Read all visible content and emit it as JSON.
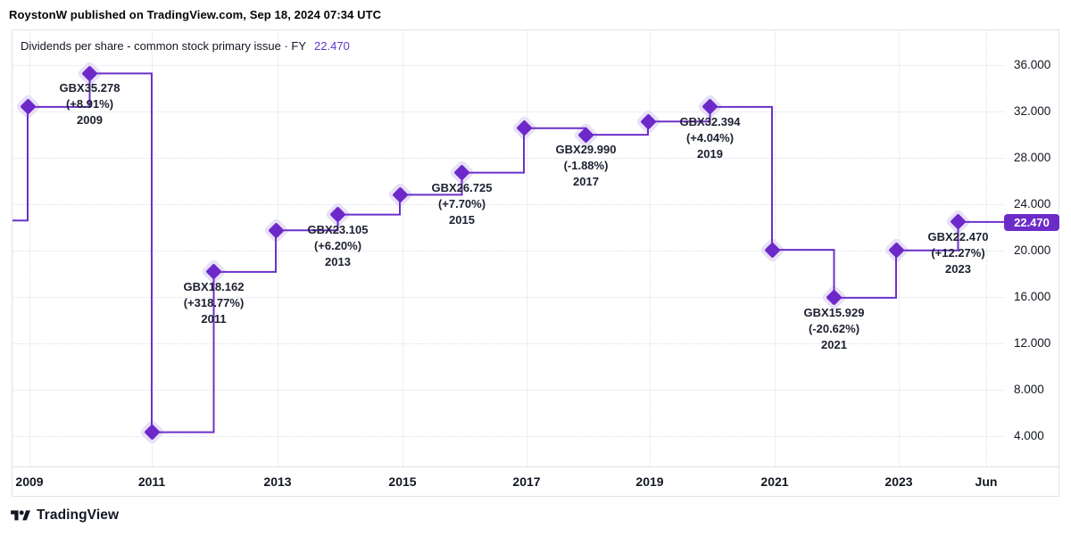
{
  "header": {
    "attribution": "RoystonW published on TradingView.com, Sep 18, 2024 07:34 UTC"
  },
  "chart": {
    "title": "Dividends per share - common stock primary issue · FY",
    "value": "22.470"
  },
  "footer": {
    "brand": "TradingView",
    "logo_icon": "tradingview-logo"
  },
  "colors": {
    "line_purple": "#6d30c9",
    "marker_purple": "#6d28c9",
    "marker_glow": "#e7e0f7",
    "title_value_purple": "#5f35c9",
    "badge_bg": "#6c2bc9",
    "badge_text": "#ffffff",
    "text_dark": "#131722",
    "grid_line": "#dcdfe9",
    "border": "#e0e3eb"
  },
  "chart_data": {
    "type": "line",
    "subtype": "step",
    "title": "Dividends per share - common stock primary issue · FY",
    "unit": "GBX (pence)",
    "grid": true,
    "legend_position": "none",
    "ylim": [
      1.5,
      38.5
    ],
    "x_axis_ticks": [
      "2009",
      "2011",
      "2013",
      "2015",
      "2017",
      "2019",
      "2021",
      "2023",
      "Jun"
    ],
    "y_axis_ticks": [
      "36.000",
      "32.000",
      "28.000",
      "24.000",
      "20.000",
      "16.000",
      "12.000",
      "8.000",
      "4.000"
    ],
    "y_axis_values": [
      36,
      32,
      28,
      24,
      20,
      16,
      12,
      8,
      4
    ],
    "price_badge": "22.470",
    "pre_series_value": 22.6,
    "series": [
      {
        "year": 2008,
        "value": 32.392
      },
      {
        "year": 2009,
        "value": 35.278,
        "label": [
          "GBX35.278",
          "(+8.91%)",
          "2009"
        ]
      },
      {
        "year": 2010,
        "value": 4.337
      },
      {
        "year": 2011,
        "value": 18.162,
        "label": [
          "GBX18.162",
          "(+318.77%)",
          "2011"
        ]
      },
      {
        "year": 2012,
        "value": 21.756
      },
      {
        "year": 2013,
        "value": 23.105,
        "label": [
          "GBX23.105",
          "(+6.20%)",
          "2013"
        ]
      },
      {
        "year": 2014,
        "value": 24.814
      },
      {
        "year": 2015,
        "value": 26.725,
        "label": [
          "GBX26.725",
          "(+7.70%)",
          "2015"
        ]
      },
      {
        "year": 2016,
        "value": 30.565
      },
      {
        "year": 2017,
        "value": 29.99,
        "label": [
          "GBX29.990",
          "(-1.88%)",
          "2017"
        ]
      },
      {
        "year": 2018,
        "value": 31.136
      },
      {
        "year": 2019,
        "value": 32.394,
        "label": [
          "GBX32.394",
          "(+4.04%)",
          "2019"
        ]
      },
      {
        "year": 2020,
        "value": 20.066
      },
      {
        "year": 2021,
        "value": 15.929,
        "label": [
          "GBX15.929",
          "(-20.62%)",
          "2021"
        ]
      },
      {
        "year": 2022,
        "value": 20.014
      },
      {
        "year": 2023,
        "value": 22.47,
        "label": [
          "GBX22.470",
          "(+12.27%)",
          "2023"
        ]
      }
    ]
  }
}
